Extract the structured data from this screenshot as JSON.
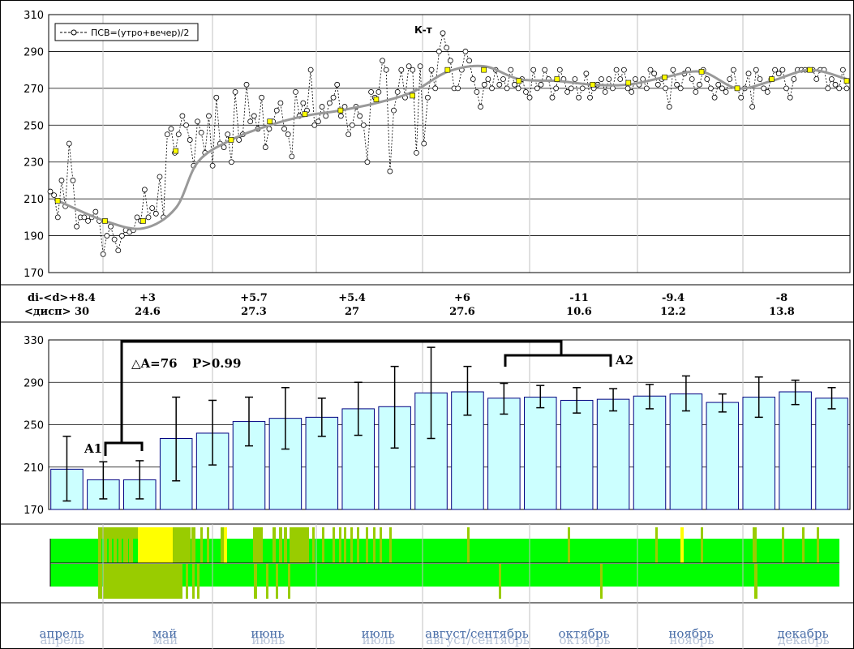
{
  "top_chart": {
    "title": "К-т",
    "legend": "ПСВ=(утро+вечер)/2",
    "ylim": [
      170,
      310
    ],
    "yticks": [
      170,
      190,
      210,
      230,
      250,
      270,
      290,
      310
    ],
    "daily": [
      214,
      212,
      200,
      220,
      206,
      240,
      220,
      195,
      200,
      200,
      198,
      200,
      203,
      198,
      180,
      190,
      195,
      188,
      182,
      190,
      193,
      192,
      193,
      200,
      198,
      215,
      200,
      205,
      202,
      222,
      200,
      245,
      248,
      235,
      245,
      255,
      250,
      242,
      228,
      252,
      246,
      235,
      255,
      228,
      265,
      240,
      238,
      245,
      230,
      268,
      242,
      245,
      272,
      252,
      255,
      248,
      265,
      238,
      248,
      252,
      258,
      262,
      248,
      245,
      233,
      268,
      255,
      262,
      258,
      280,
      250,
      252,
      260,
      255,
      262,
      265,
      272,
      255,
      260,
      245,
      250,
      260,
      255,
      250,
      230,
      268,
      265,
      268,
      285,
      280,
      225,
      258,
      268,
      280,
      265,
      282,
      280,
      235,
      282,
      240,
      265,
      280,
      270,
      290,
      300,
      292,
      285,
      270,
      270,
      280,
      290,
      285,
      275,
      268,
      260,
      272,
      275,
      270,
      280,
      272,
      275,
      270,
      280,
      272,
      270,
      275,
      268,
      265,
      280,
      270,
      272,
      280,
      275,
      265,
      270,
      280,
      275,
      268,
      270,
      275,
      265,
      270,
      278,
      265,
      270,
      272,
      275,
      268,
      275,
      270,
      280,
      275,
      280,
      270,
      268,
      275,
      272,
      275,
      270,
      280,
      278,
      272,
      275,
      270,
      260,
      280,
      272,
      270,
      278,
      280,
      275,
      268,
      272,
      280,
      275,
      270,
      265,
      272,
      270,
      268,
      275,
      280,
      270,
      265,
      270,
      278,
      260,
      280,
      275,
      270,
      268,
      275,
      280,
      278,
      280,
      270,
      265,
      275,
      280,
      280,
      280,
      280,
      280,
      275,
      280,
      280,
      270,
      275,
      272,
      270,
      280,
      270
    ],
    "avg_points": [
      {
        "x": 12,
        "y": 209
      },
      {
        "x": 89,
        "y": 198
      },
      {
        "x": 151,
        "y": 198
      },
      {
        "x": 204,
        "y": 236
      },
      {
        "x": 294,
        "y": 242
      },
      {
        "x": 357,
        "y": 252
      },
      {
        "x": 414,
        "y": 256
      },
      {
        "x": 472,
        "y": 258
      },
      {
        "x": 530,
        "y": 264
      },
      {
        "x": 589,
        "y": 266
      },
      {
        "x": 646,
        "y": 280
      },
      {
        "x": 705,
        "y": 280
      },
      {
        "x": 762,
        "y": 274
      },
      {
        "x": 824,
        "y": 275
      },
      {
        "x": 882,
        "y": 272
      },
      {
        "x": 940,
        "y": 273
      },
      {
        "x": 999,
        "y": 276
      },
      {
        "x": 1059,
        "y": 279
      },
      {
        "x": 1117,
        "y": 270
      },
      {
        "x": 1173,
        "y": 275
      },
      {
        "x": 1235,
        "y": 280
      },
      {
        "x": 1295,
        "y": 274
      }
    ],
    "smooth_points": [
      {
        "x": 12,
        "y": 209
      },
      {
        "x": 89,
        "y": 198
      },
      {
        "x": 151,
        "y": 194
      },
      {
        "x": 204,
        "y": 205
      },
      {
        "x": 240,
        "y": 230
      },
      {
        "x": 294,
        "y": 242
      },
      {
        "x": 357,
        "y": 250
      },
      {
        "x": 414,
        "y": 255
      },
      {
        "x": 472,
        "y": 258
      },
      {
        "x": 530,
        "y": 262
      },
      {
        "x": 589,
        "y": 268
      },
      {
        "x": 646,
        "y": 279
      },
      {
        "x": 705,
        "y": 282
      },
      {
        "x": 762,
        "y": 275
      },
      {
        "x": 824,
        "y": 274
      },
      {
        "x": 882,
        "y": 272
      },
      {
        "x": 940,
        "y": 272
      },
      {
        "x": 999,
        "y": 276
      },
      {
        "x": 1059,
        "y": 279
      },
      {
        "x": 1117,
        "y": 270
      },
      {
        "x": 1173,
        "y": 274
      },
      {
        "x": 1235,
        "y": 280
      },
      {
        "x": 1295,
        "y": 275
      }
    ]
  },
  "stats": {
    "row1_label": "di-<d>",
    "row2_label": "<дисп>",
    "groups": [
      {
        "delta": "+8.4",
        "disp": "30"
      },
      {
        "delta": "+3",
        "disp": "24.6"
      },
      {
        "delta": "+5.7",
        "disp": "27.3"
      },
      {
        "delta": "+5.4",
        "disp": "27"
      },
      {
        "delta": "+6",
        "disp": "27.6"
      },
      {
        "delta": "-11",
        "disp": "10.6"
      },
      {
        "delta": "-9.4",
        "disp": "12.2"
      },
      {
        "delta": "-8",
        "disp": "13.8"
      }
    ]
  },
  "bar_chart": {
    "ylim": [
      170,
      330
    ],
    "yticks": [
      170,
      210,
      250,
      290,
      330
    ],
    "values": [
      208,
      198,
      198,
      237,
      242,
      253,
      256,
      257,
      265,
      267,
      280,
      281,
      275,
      276,
      273,
      274,
      277,
      279,
      271,
      276,
      281,
      275
    ],
    "err_low": [
      178,
      180,
      180,
      197,
      212,
      230,
      227,
      239,
      240,
      228,
      237,
      259,
      260,
      266,
      261,
      263,
      265,
      263,
      262,
      257,
      269,
      265
    ],
    "err_high": [
      239,
      215,
      216,
      276,
      273,
      276,
      285,
      275,
      290,
      305,
      323,
      305,
      289,
      287,
      285,
      284,
      288,
      296,
      279,
      295,
      292,
      285
    ],
    "annotations": {
      "a1": "A1",
      "a2": "A2",
      "delta": "△A=76",
      "p": "P>0.99"
    }
  },
  "months": [
    "апрель",
    "май",
    "июнь",
    "июль",
    "август/сентябрь",
    "октябрь",
    "ноябрь",
    "декабрь"
  ],
  "colors": {
    "bar_fill": "#ccffff",
    "bar_stroke": "#000080",
    "smooth_line": "#999999",
    "avg_marker": "#ffff00",
    "stripe_green": "#00ff00",
    "stripe_olive": "#99cc00",
    "stripe_yellow": "#ffff00"
  }
}
